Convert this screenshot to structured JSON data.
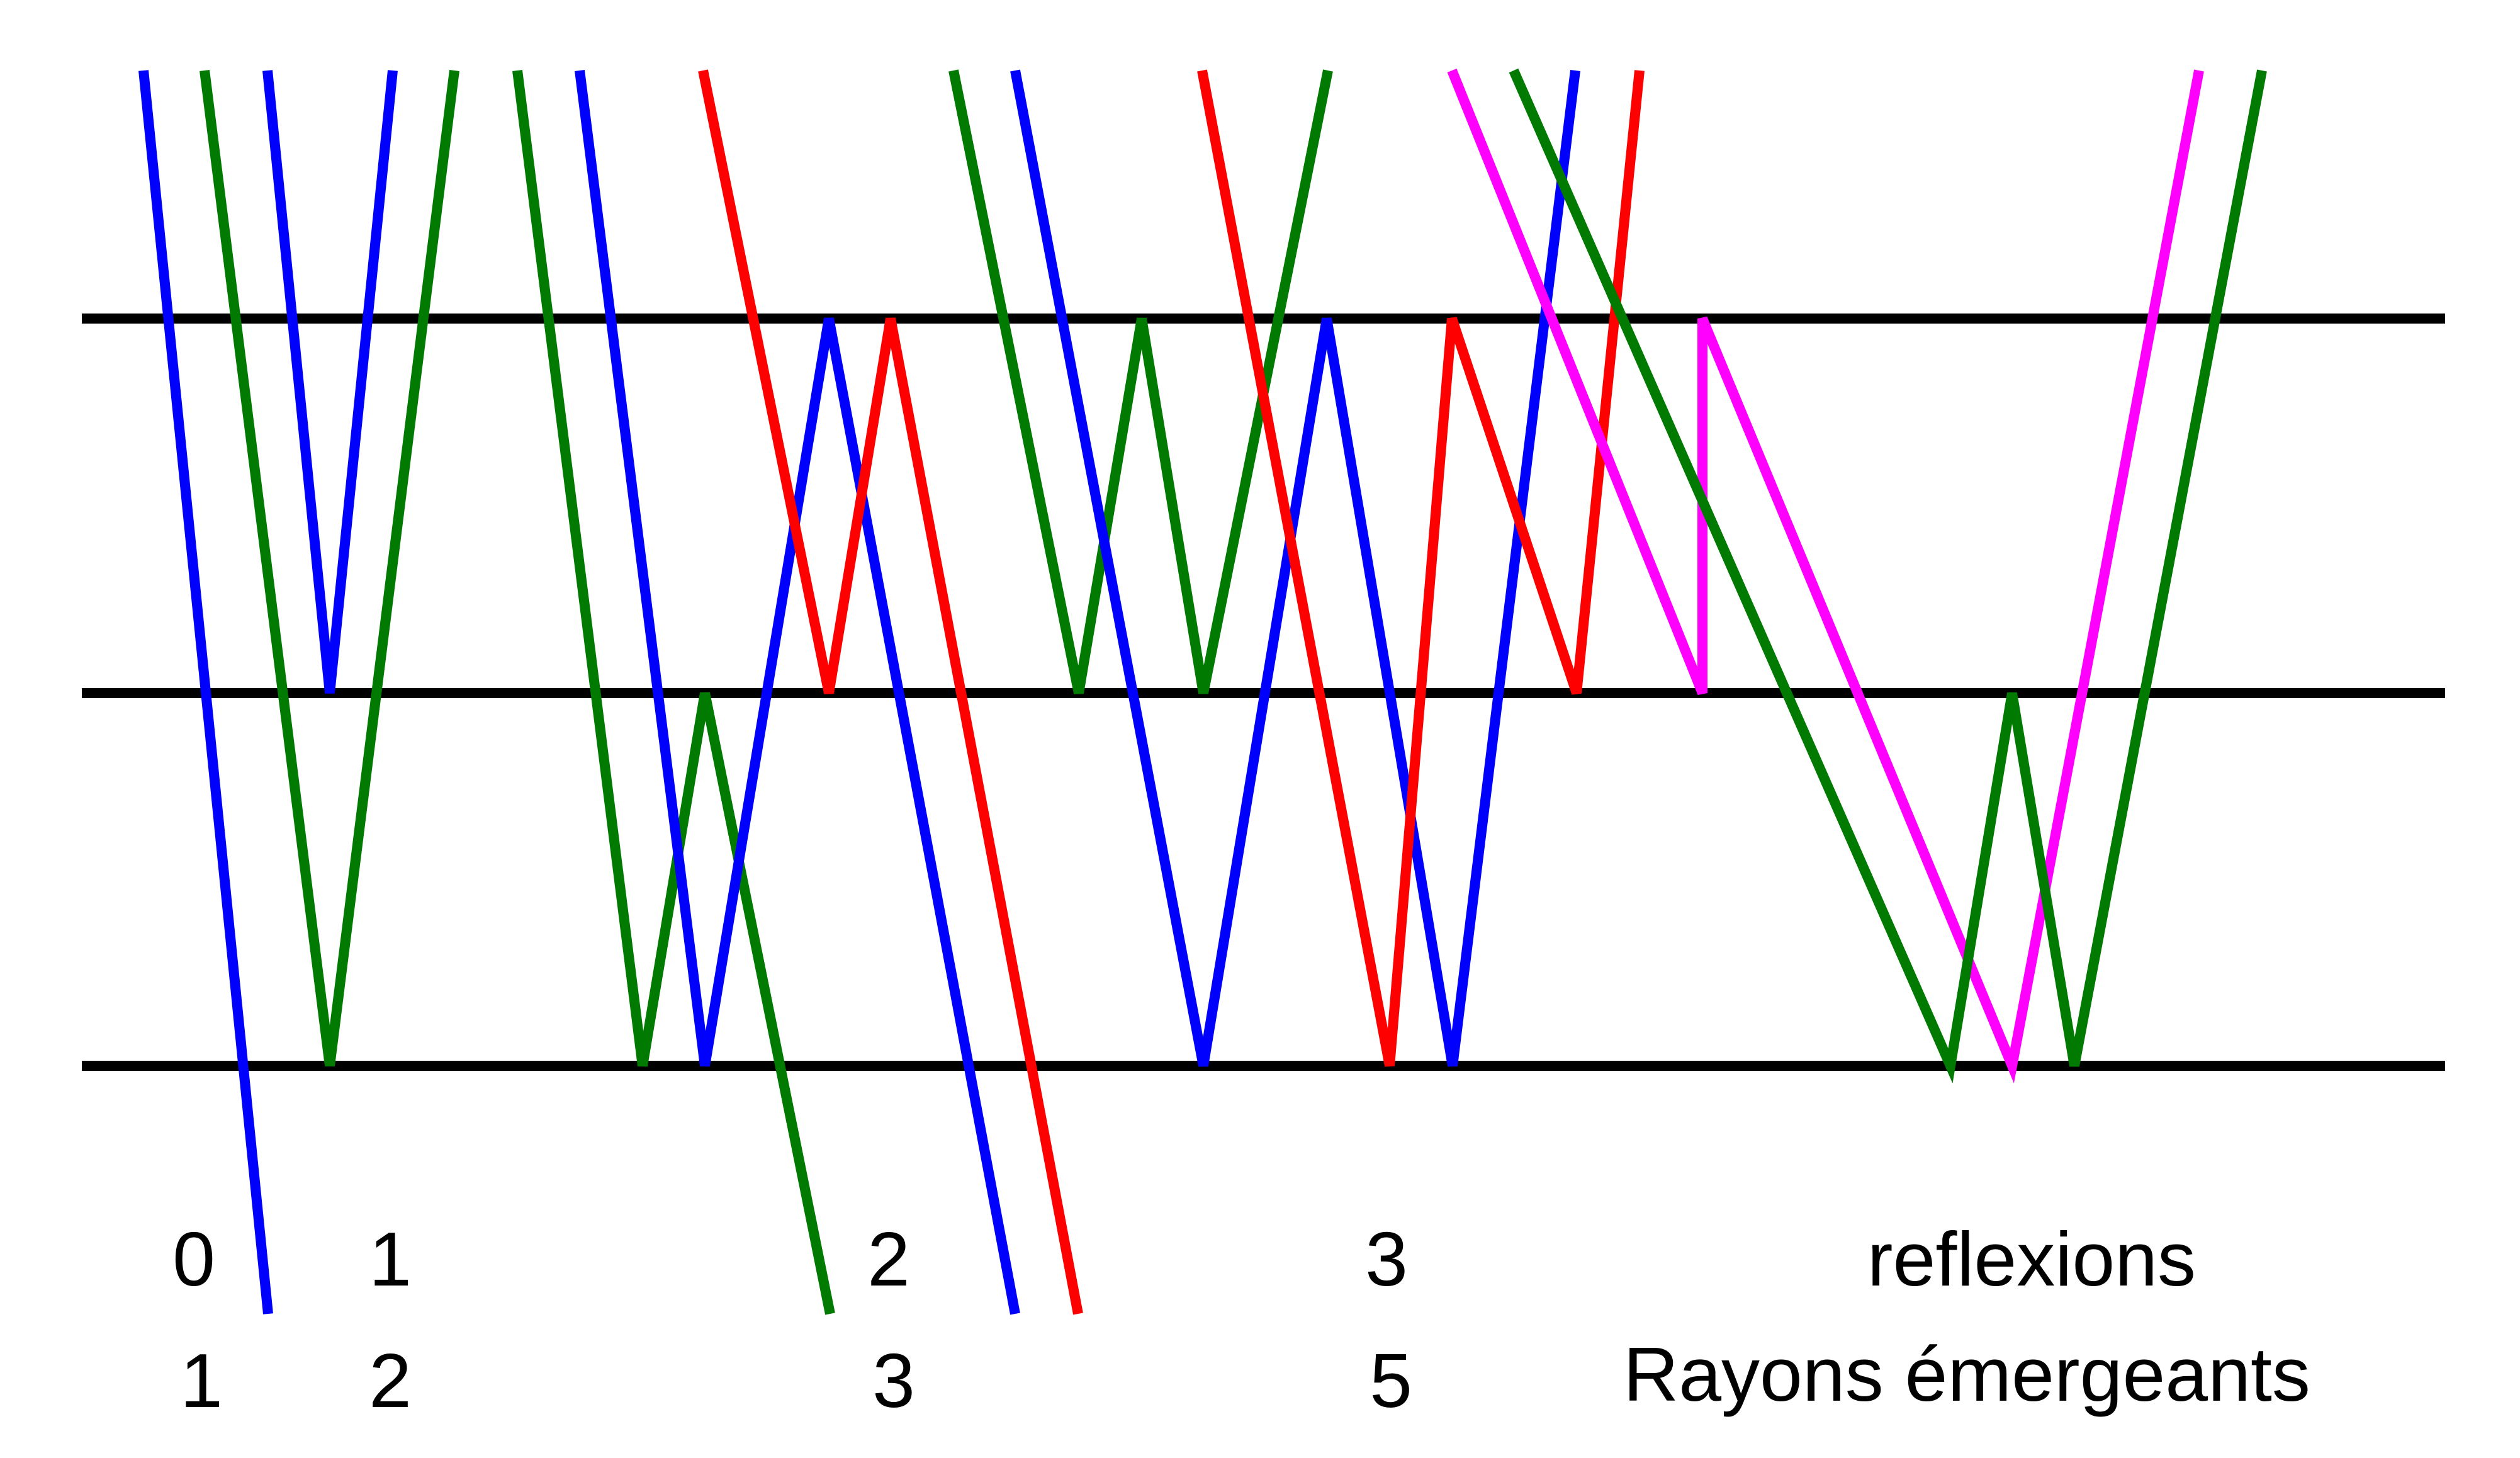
{
  "colors": {
    "blue": "#0000ff",
    "green": "#007a00",
    "red": "#ff0000",
    "magenta": "#ff00ff",
    "black": "#000000"
  },
  "reflections_row": {
    "values": [
      "0",
      "1",
      "2",
      "3"
    ],
    "label": "reflexions"
  },
  "emergent_row": {
    "values": [
      "1",
      "2",
      "3",
      "5"
    ],
    "label": "Rayons émergeants"
  }
}
